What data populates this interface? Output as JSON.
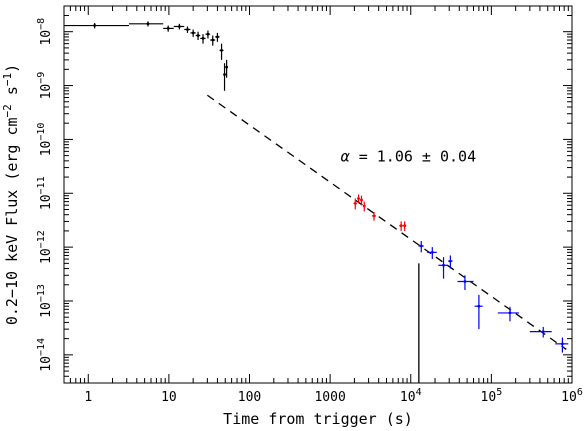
{
  "chart_data": {
    "type": "scatter",
    "title": "",
    "xlabel": "Time from trigger (s)",
    "ylabel_parts": {
      "main": "0.2−10 keV Flux (erg cm",
      "exp1": "−2",
      "mid": " s",
      "exp2": "−1",
      "end": ")"
    },
    "x_scale": "log",
    "y_scale": "log",
    "xlim": [
      0.5,
      1000000
    ],
    "ylim": [
      3e-15,
      3e-08
    ],
    "x_tick_labels": [
      {
        "v": 1,
        "base": "1"
      },
      {
        "v": 10,
        "base": "10"
      },
      {
        "v": 100,
        "base": "100"
      },
      {
        "v": 1000,
        "base": "1000"
      },
      {
        "v": 10000,
        "base": "10",
        "exp": "4"
      },
      {
        "v": 100000,
        "base": "10",
        "exp": "5"
      },
      {
        "v": 1000000,
        "base": "10",
        "exp": "6"
      }
    ],
    "y_tick_labels": [
      {
        "v": 1e-14,
        "base": "10",
        "exp": "−14"
      },
      {
        "v": 1e-13,
        "base": "10",
        "exp": "−13"
      },
      {
        "v": 1e-12,
        "base": "10",
        "exp": "−12"
      },
      {
        "v": 1e-11,
        "base": "10",
        "exp": "−11"
      },
      {
        "v": 1e-10,
        "base": "10",
        "exp": "−10"
      },
      {
        "v": 1e-09,
        "base": "10",
        "exp": "−9"
      },
      {
        "v": 1e-08,
        "base": "10",
        "exp": "−8"
      }
    ],
    "colors": {
      "bat": "#000000",
      "xrt_wt": "#ff0000",
      "xrt_pc": "#0000ff",
      "fit": "#000000"
    },
    "series": [
      {
        "color_key": "bat",
        "points": [
          {
            "x": 1.2,
            "y": 1.3e-08,
            "xlo": 0.5,
            "xhi": 3.2,
            "ylo": 1.15e-08,
            "yhi": 1.45e-08
          },
          {
            "x": 5.5,
            "y": 1.4e-08,
            "xlo": 3.2,
            "xhi": 8.5,
            "ylo": 1.25e-08,
            "yhi": 1.55e-08
          },
          {
            "x": 9.8,
            "y": 1.15e-08,
            "xlo": 8.5,
            "xhi": 11.5,
            "ylo": 1e-08,
            "yhi": 1.3e-08
          },
          {
            "x": 13.5,
            "y": 1.25e-08,
            "xlo": 11.5,
            "xhi": 15.5,
            "ylo": 1.1e-08,
            "yhi": 1.4e-08
          },
          {
            "x": 17,
            "y": 1.1e-08,
            "xlo": 15.5,
            "xhi": 18.5,
            "ylo": 9.5e-09,
            "yhi": 1.25e-08
          },
          {
            "x": 20,
            "y": 9.5e-09,
            "xlo": 18.5,
            "xhi": 21.5,
            "ylo": 8e-09,
            "yhi": 1.1e-08
          },
          {
            "x": 23,
            "y": 8.5e-09,
            "xlo": 21.5,
            "xhi": 24.5,
            "ylo": 7e-09,
            "yhi": 1e-08
          },
          {
            "x": 26.5,
            "y": 7.5e-09,
            "xlo": 24.5,
            "xhi": 28.5,
            "ylo": 6e-09,
            "yhi": 9e-09
          },
          {
            "x": 30.5,
            "y": 9e-09,
            "xlo": 28.5,
            "xhi": 32.5,
            "ylo": 7.5e-09,
            "yhi": 1.05e-08
          },
          {
            "x": 35,
            "y": 7e-09,
            "xlo": 32.5,
            "xhi": 37.5,
            "ylo": 5.5e-09,
            "yhi": 8.5e-09
          },
          {
            "x": 40,
            "y": 8e-09,
            "xlo": 37.5,
            "xhi": 42.5,
            "ylo": 6.5e-09,
            "yhi": 9.5e-09
          },
          {
            "x": 45,
            "y": 4.5e-09,
            "xlo": 42.5,
            "xhi": 47.5,
            "ylo": 3e-09,
            "yhi": 6e-09
          },
          {
            "x": 49,
            "y": 1.6e-09,
            "xlo": 47.5,
            "xhi": 50.5,
            "ylo": 8e-10,
            "yhi": 2.6e-09
          },
          {
            "x": 52,
            "y": 2.2e-09,
            "xlo": 50.5,
            "xhi": 53.5,
            "ylo": 1.4e-09,
            "yhi": 3e-09
          }
        ]
      },
      {
        "color_key": "xrt_wt",
        "points": [
          {
            "x": 2050,
            "y": 6.5e-12,
            "xlo": 1950,
            "xhi": 2150,
            "ylo": 5e-12,
            "yhi": 8e-12
          },
          {
            "x": 2250,
            "y": 8e-12,
            "xlo": 2150,
            "xhi": 2350,
            "ylo": 6.5e-12,
            "yhi": 9.5e-12
          },
          {
            "x": 2450,
            "y": 7.5e-12,
            "xlo": 2350,
            "xhi": 2550,
            "ylo": 6e-12,
            "yhi": 9e-12
          },
          {
            "x": 2650,
            "y": 5.8e-12,
            "xlo": 2550,
            "xhi": 2750,
            "ylo": 4.6e-12,
            "yhi": 7e-12
          },
          {
            "x": 3500,
            "y": 3.8e-12,
            "xlo": 3300,
            "xhi": 3700,
            "ylo": 3.1e-12,
            "yhi": 4.5e-12
          },
          {
            "x": 7600,
            "y": 2.5e-12,
            "xlo": 7200,
            "xhi": 8000,
            "ylo": 2e-12,
            "yhi": 3e-12
          },
          {
            "x": 8400,
            "y": 2.5e-12,
            "xlo": 8000,
            "xhi": 8800,
            "ylo": 2e-12,
            "yhi": 3e-12
          }
        ]
      },
      {
        "color_key": "xrt_pc",
        "points": [
          {
            "x": 13500,
            "y": 1.05e-12,
            "xlo": 12500,
            "xhi": 14500,
            "ylo": 8e-13,
            "yhi": 1.3e-12
          },
          {
            "x": 18500,
            "y": 8e-13,
            "xlo": 16000,
            "xhi": 21000,
            "ylo": 6e-13,
            "yhi": 1e-12
          },
          {
            "x": 25500,
            "y": 4.6e-13,
            "xlo": 22000,
            "xhi": 29000,
            "ylo": 2.6e-13,
            "yhi": 6.5e-13
          },
          {
            "x": 31000,
            "y": 5.5e-13,
            "xlo": 29000,
            "xhi": 33000,
            "ylo": 4e-13,
            "yhi": 7e-13
          },
          {
            "x": 47000,
            "y": 2.3e-13,
            "xlo": 38000,
            "xhi": 60000,
            "ylo": 1.6e-13,
            "yhi": 3e-13
          },
          {
            "x": 70000,
            "y": 8e-14,
            "xlo": 62000,
            "xhi": 78000,
            "ylo": 3e-14,
            "yhi": 1.3e-13
          },
          {
            "x": 170000,
            "y": 6e-14,
            "xlo": 120000,
            "xhi": 220000,
            "ylo": 4.2e-14,
            "yhi": 7.8e-14
          },
          {
            "x": 440000,
            "y": 2.7e-14,
            "xlo": 300000,
            "xhi": 560000,
            "ylo": 2.1e-14,
            "yhi": 3.3e-14
          },
          {
            "x": 760000,
            "y": 1.6e-14,
            "xlo": 620000,
            "xhi": 900000,
            "ylo": 1.1e-14,
            "yhi": 2.1e-14
          }
        ]
      }
    ],
    "fit_line": {
      "x": [
        30,
        850000
      ],
      "y": [
        6.6e-10,
        1.26e-14
      ],
      "style": "dashed"
    },
    "marker_line": {
      "x": 12600,
      "y_top": 5e-13
    },
    "annotation": {
      "prefix": "α",
      "text": " = 1.06 ± 0.04",
      "x": 1350,
      "y": 3.9e-11
    }
  }
}
